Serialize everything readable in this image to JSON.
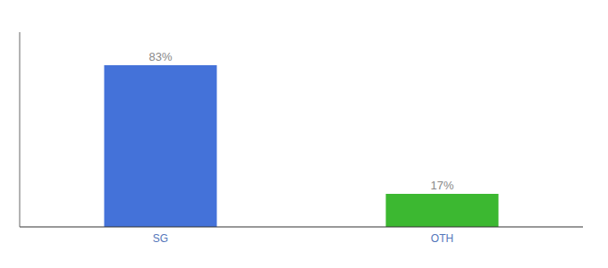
{
  "chart_data": {
    "type": "bar",
    "categories": [
      "SG",
      "OTH"
    ],
    "values": [
      83,
      17
    ],
    "colors": [
      "#4472d9",
      "#3cb831"
    ],
    "value_labels": [
      "83%",
      "17%"
    ],
    "data_labels": true,
    "ylim": [
      0,
      100
    ],
    "yticks": [],
    "tick_labels": "x",
    "grid": false
  }
}
